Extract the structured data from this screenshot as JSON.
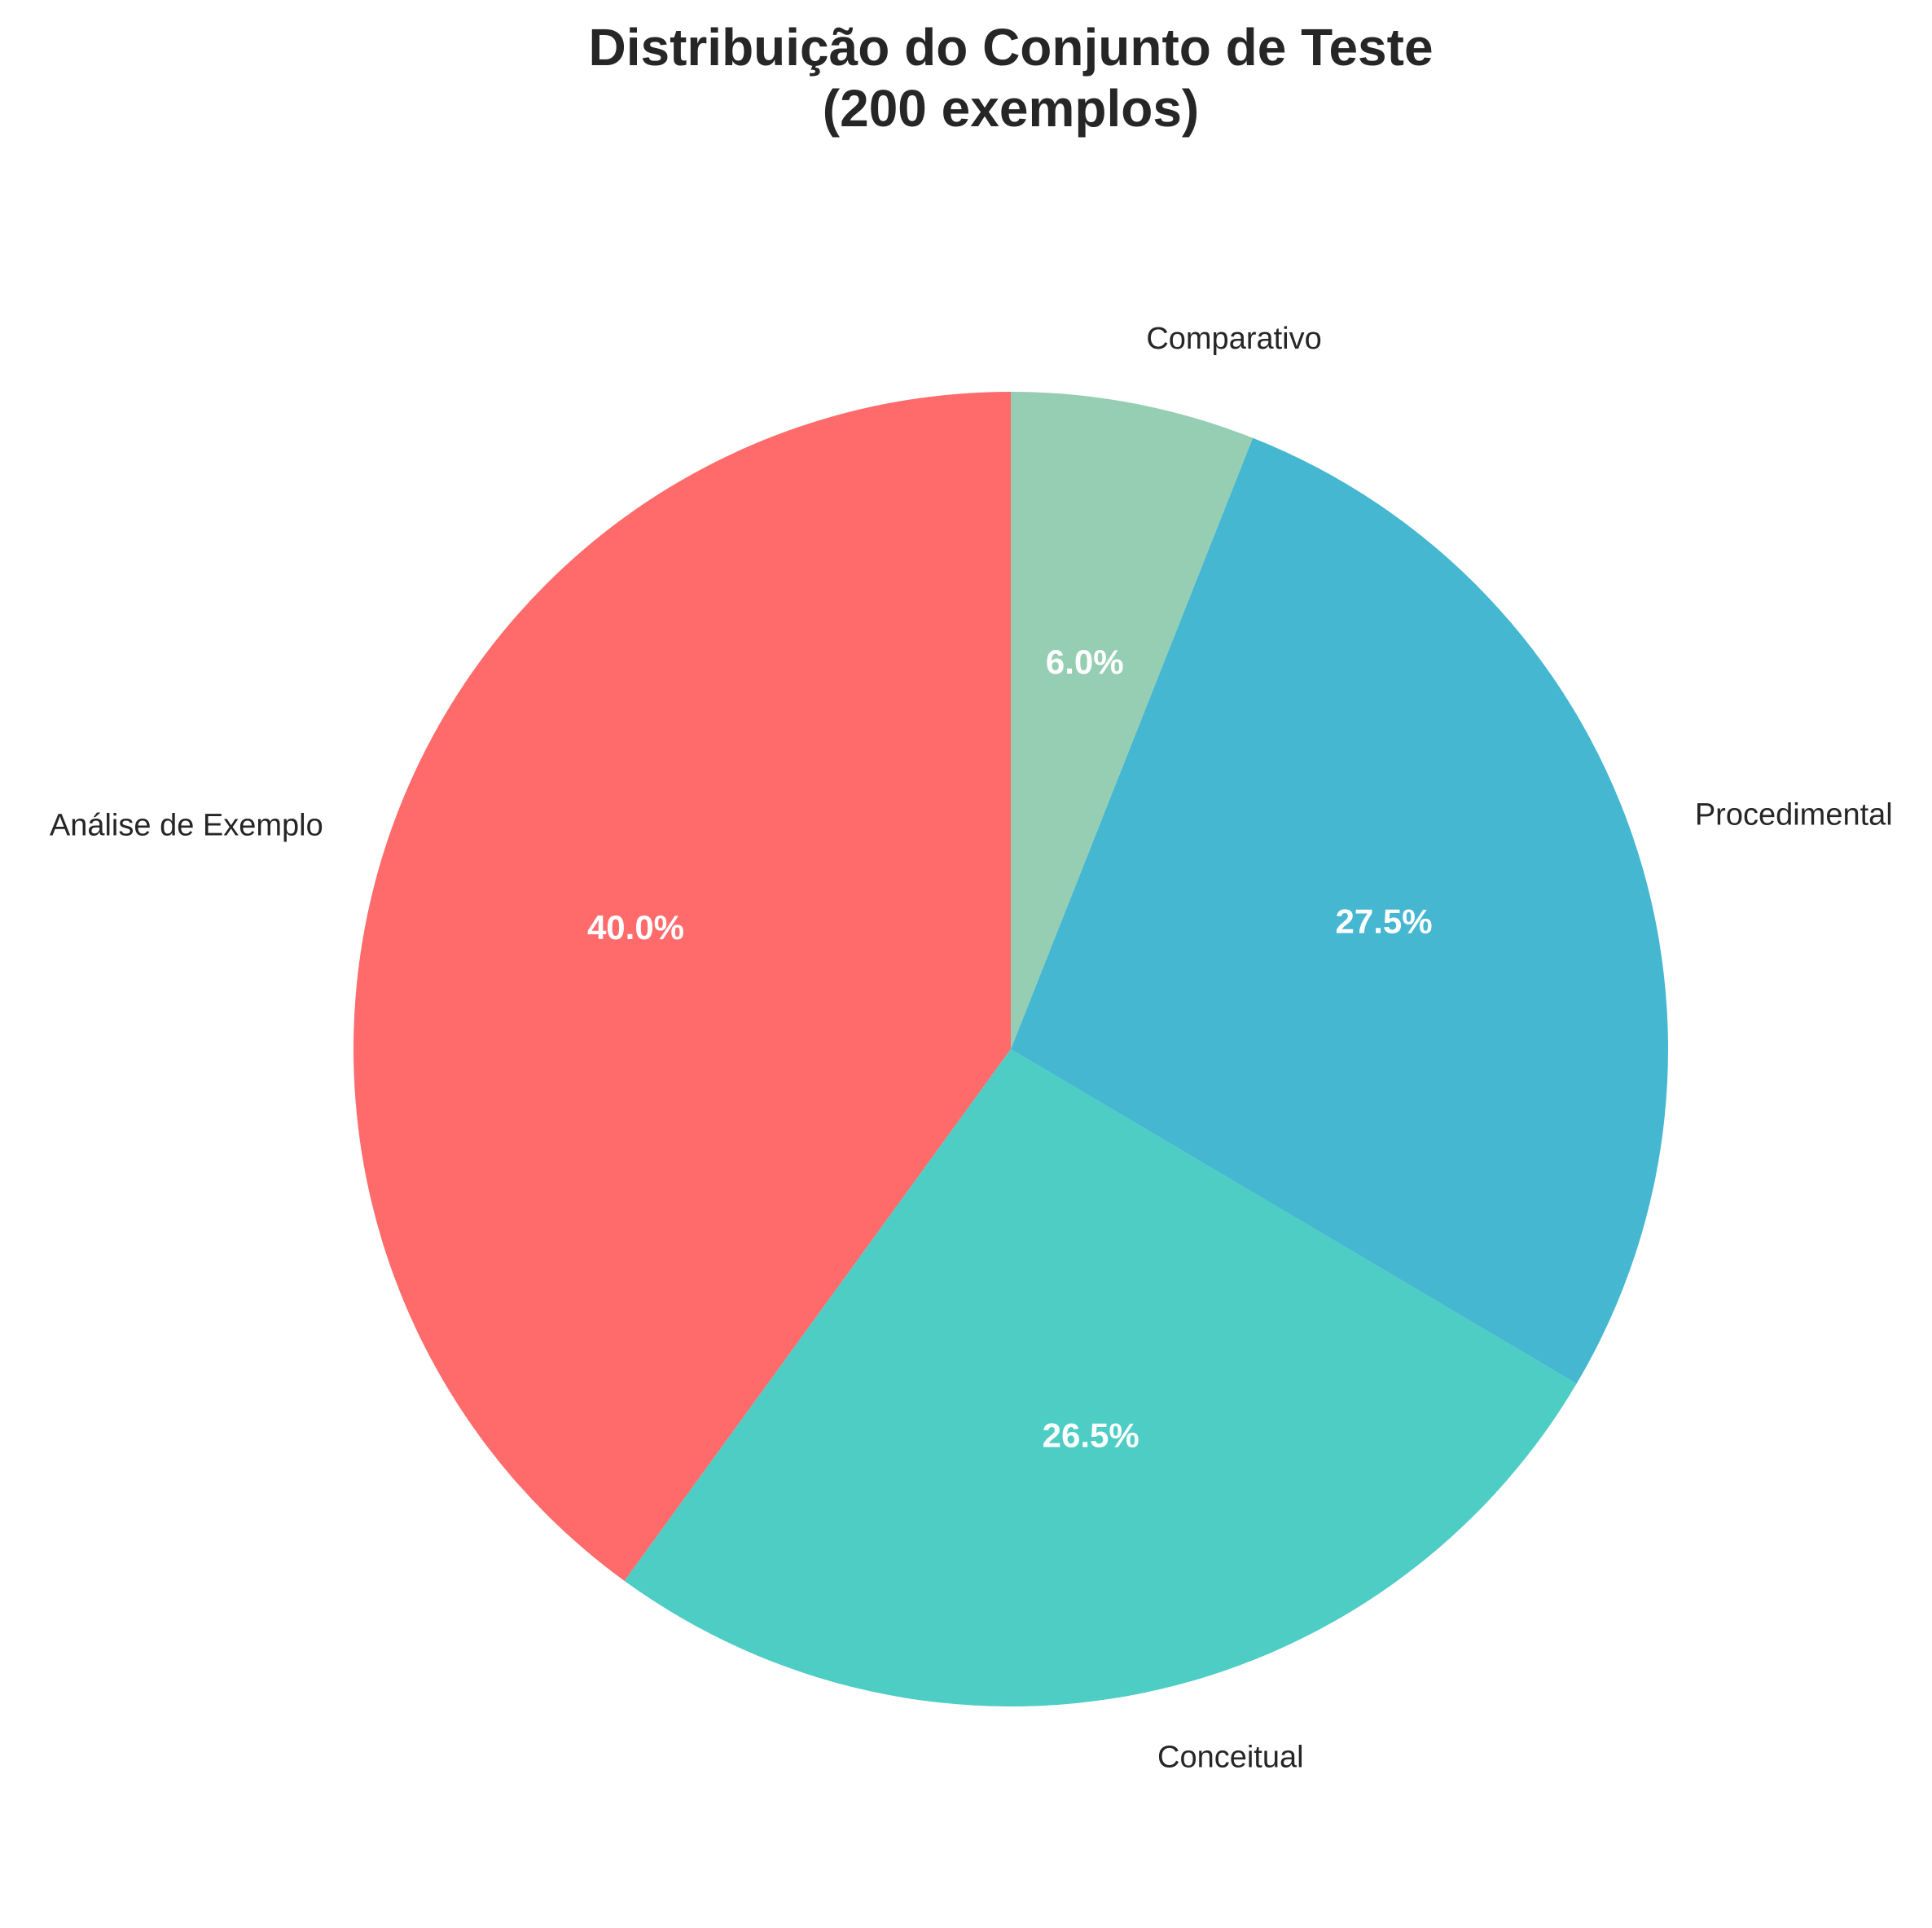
{
  "chart_data": {
    "type": "pie",
    "title": [
      "Distribuição do Conjunto de Teste",
      "(200 exemplos)"
    ],
    "start_angle_deg": 90,
    "direction": "counterclockwise",
    "slices": [
      {
        "label": "Análise de Exemplo",
        "value": 40.0,
        "pct_label": "40.0%",
        "color": "#FF6B6B"
      },
      {
        "label": "Conceitual",
        "value": 26.5,
        "pct_label": "26.5%",
        "color": "#4ECDC4"
      },
      {
        "label": "Procedimental",
        "value": 27.5,
        "pct_label": "27.5%",
        "color": "#45B7D1"
      },
      {
        "label": "Comparativo",
        "value": 6.0,
        "pct_label": "6.0%",
        "color": "#96CEB4"
      }
    ]
  }
}
